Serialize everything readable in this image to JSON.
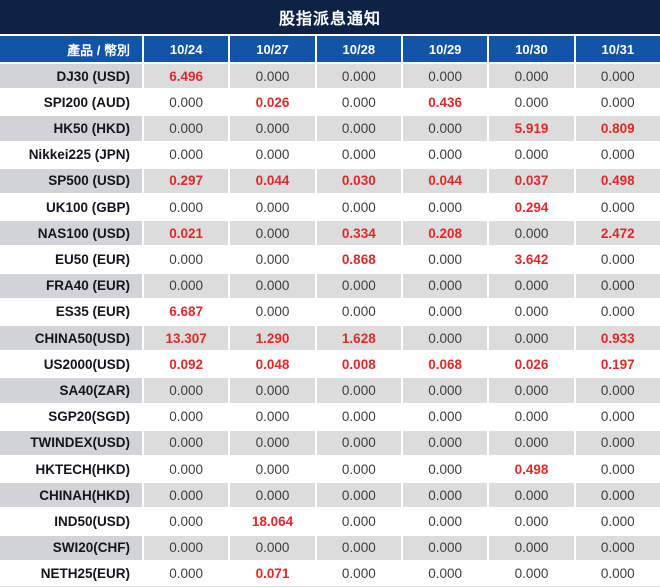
{
  "title": "股指派息通知",
  "colors": {
    "title_bar": "#0d2244",
    "header_bar": "#1254a5",
    "gray_row_label": "#d2d3d8",
    "gray_row_value": "#dcdcdc",
    "white_row": "#ffffff",
    "zero_text": "#3d3d3d",
    "nonzero_text_red": "#e22828"
  },
  "chart_data": {
    "type": "table",
    "title": "股指派息通知",
    "columns": [
      "產品 / 幣別",
      "10/24",
      "10/27",
      "10/28",
      "10/29",
      "10/30",
      "10/31"
    ],
    "rows": [
      [
        "DJ30 (USD)",
        "6.496",
        "0.000",
        "0.000",
        "0.000",
        "0.000",
        "0.000"
      ],
      [
        "SPI200 (AUD)",
        "0.000",
        "0.026",
        "0.000",
        "0.436",
        "0.000",
        "0.000"
      ],
      [
        "HK50 (HKD)",
        "0.000",
        "0.000",
        "0.000",
        "0.000",
        "5.919",
        "0.809"
      ],
      [
        "Nikkei225 (JPN)",
        "0.000",
        "0.000",
        "0.000",
        "0.000",
        "0.000",
        "0.000"
      ],
      [
        "SP500 (USD)",
        "0.297",
        "0.044",
        "0.030",
        "0.044",
        "0.037",
        "0.498"
      ],
      [
        "UK100 (GBP)",
        "0.000",
        "0.000",
        "0.000",
        "0.000",
        "0.294",
        "0.000"
      ],
      [
        "NAS100 (USD)",
        "0.021",
        "0.000",
        "0.334",
        "0.208",
        "0.000",
        "2.472"
      ],
      [
        "EU50 (EUR)",
        "0.000",
        "0.000",
        "0.868",
        "0.000",
        "3.642",
        "0.000"
      ],
      [
        "FRA40 (EUR)",
        "0.000",
        "0.000",
        "0.000",
        "0.000",
        "0.000",
        "0.000"
      ],
      [
        "ES35 (EUR)",
        "6.687",
        "0.000",
        "0.000",
        "0.000",
        "0.000",
        "0.000"
      ],
      [
        "CHINA50(USD)",
        "13.307",
        "1.290",
        "1.628",
        "0.000",
        "0.000",
        "0.933"
      ],
      [
        "US2000(USD)",
        "0.092",
        "0.048",
        "0.008",
        "0.068",
        "0.026",
        "0.197"
      ],
      [
        "SA40(ZAR)",
        "0.000",
        "0.000",
        "0.000",
        "0.000",
        "0.000",
        "0.000"
      ],
      [
        "SGP20(SGD)",
        "0.000",
        "0.000",
        "0.000",
        "0.000",
        "0.000",
        "0.000"
      ],
      [
        "TWINDEX(USD)",
        "0.000",
        "0.000",
        "0.000",
        "0.000",
        "0.000",
        "0.000"
      ],
      [
        "HKTECH(HKD)",
        "0.000",
        "0.000",
        "0.000",
        "0.000",
        "0.498",
        "0.000"
      ],
      [
        "CHINAH(HKD)",
        "0.000",
        "0.000",
        "0.000",
        "0.000",
        "0.000",
        "0.000"
      ],
      [
        "IND50(USD)",
        "0.000",
        "18.064",
        "0.000",
        "0.000",
        "0.000",
        "0.000"
      ],
      [
        "SWI20(CHF)",
        "0.000",
        "0.000",
        "0.000",
        "0.000",
        "0.000",
        "0.000"
      ],
      [
        "NETH25(EUR)",
        "0.000",
        "0.071",
        "0.000",
        "0.000",
        "0.000",
        "0.000"
      ]
    ]
  }
}
